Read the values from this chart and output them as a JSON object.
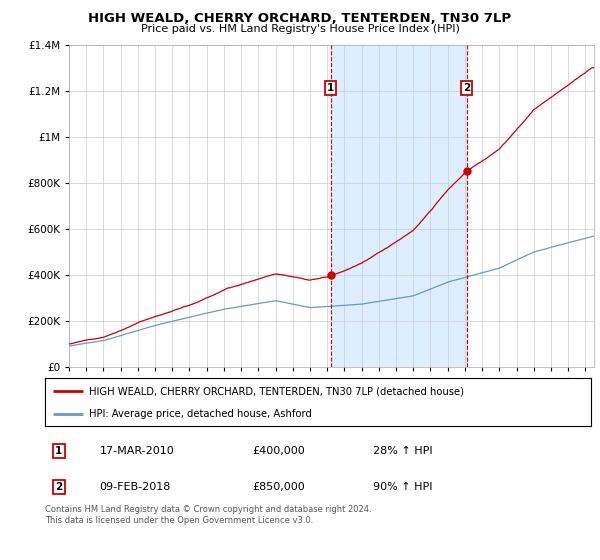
{
  "title1": "HIGH WEALD, CHERRY ORCHARD, TENTERDEN, TN30 7LP",
  "title2": "Price paid vs. HM Land Registry's House Price Index (HPI)",
  "legend_line1": "HIGH WEALD, CHERRY ORCHARD, TENTERDEN, TN30 7LP (detached house)",
  "legend_line2": "HPI: Average price, detached house, Ashford",
  "footnote": "Contains HM Land Registry data © Crown copyright and database right 2024.\nThis data is licensed under the Open Government Licence v3.0.",
  "sale1_label": "1",
  "sale1_date": "17-MAR-2010",
  "sale1_price": "£400,000",
  "sale1_hpi": "28% ↑ HPI",
  "sale1_year": 2010.21,
  "sale1_value": 400000,
  "sale2_label": "2",
  "sale2_date": "09-FEB-2018",
  "sale2_price": "£850,000",
  "sale2_hpi": "90% ↑ HPI",
  "sale2_year": 2018.11,
  "sale2_value": 850000,
  "red_color": "#cc0000",
  "blue_color": "#6699cc",
  "shade_color": "#ddeeff",
  "ylim": [
    0,
    1400000
  ],
  "xlim_start": 1995.0,
  "xlim_end": 2025.5,
  "yticks": [
    0,
    200000,
    400000,
    600000,
    800000,
    1000000,
    1200000,
    1400000
  ],
  "ytick_labels": [
    "£0",
    "£200K",
    "£400K",
    "£600K",
    "£800K",
    "£1M",
    "£1.2M",
    "£1.4M"
  ],
  "xticks": [
    1995,
    1996,
    1997,
    1998,
    1999,
    2000,
    2001,
    2002,
    2003,
    2004,
    2005,
    2006,
    2007,
    2008,
    2009,
    2010,
    2011,
    2012,
    2013,
    2014,
    2015,
    2016,
    2017,
    2018,
    2019,
    2020,
    2021,
    2022,
    2023,
    2024,
    2025
  ]
}
